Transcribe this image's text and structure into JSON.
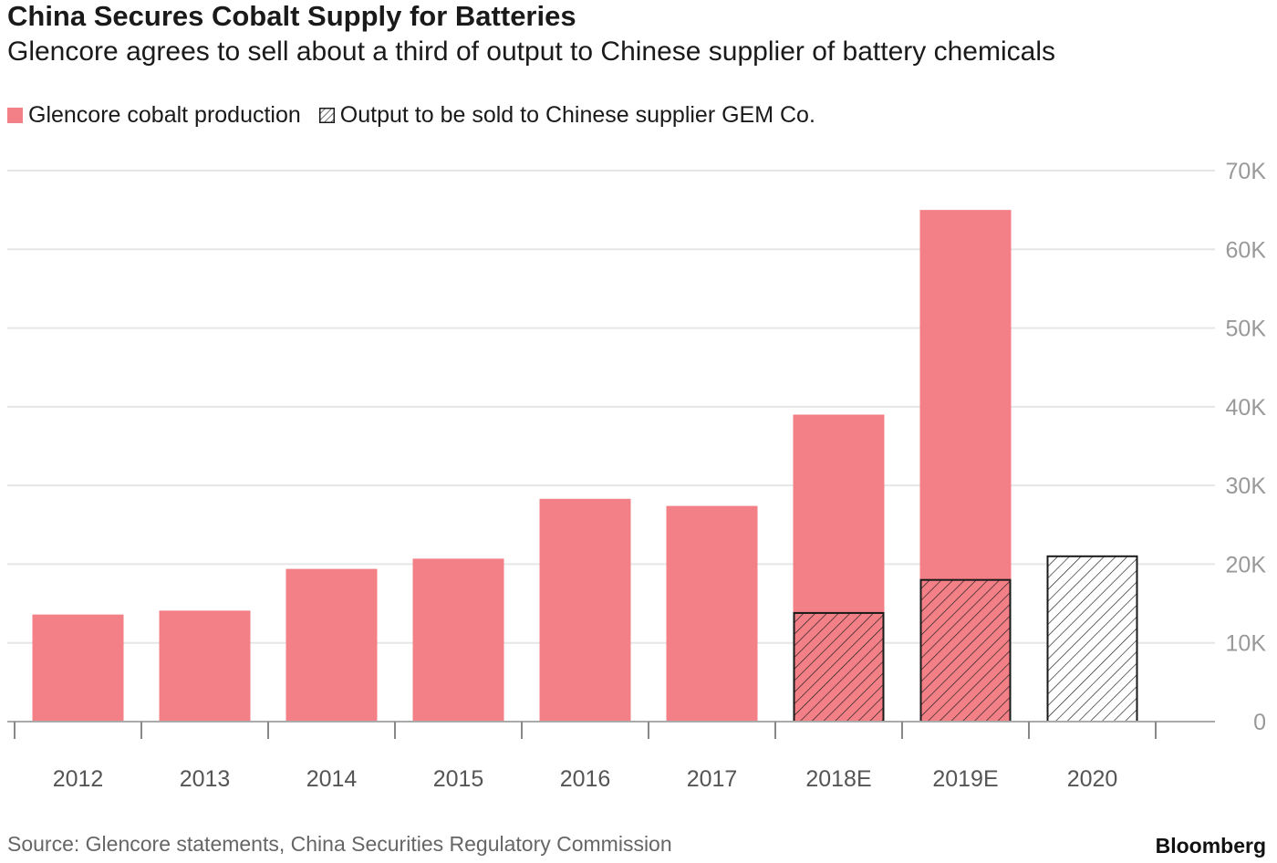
{
  "title": "China Secures Cobalt Supply for Batteries",
  "subtitle": "Glencore agrees to sell about a third of output to Chinese supplier of battery chemicals",
  "legend": {
    "production": "Glencore cobalt production",
    "gem": "Output to be sold to Chinese supplier GEM Co."
  },
  "source": "Source: Glencore statements, China Securities Regulatory Commission",
  "brand": "Bloomberg",
  "colors": {
    "production": "#f28086",
    "outline": "#1a1a1a",
    "grid": "#e6e6e6",
    "tick": "#888888"
  },
  "chart_data": {
    "type": "bar",
    "title": "China Secures Cobalt Supply for Batteries",
    "xlabel": "",
    "ylabel": "",
    "ylim": [
      0,
      70000
    ],
    "y_ticks": [
      0,
      10000,
      20000,
      30000,
      40000,
      50000,
      60000,
      70000
    ],
    "y_tick_labels": [
      "0",
      "10K",
      "20K",
      "30K",
      "40K",
      "50K",
      "60K",
      "70K"
    ],
    "y_axis_side": "right",
    "grid": true,
    "legend_position": "top-left",
    "categories": [
      "2012",
      "2013",
      "2014",
      "2015",
      "2016",
      "2017",
      "2018E",
      "2019E",
      "2020"
    ],
    "series": [
      {
        "name": "Glencore cobalt production",
        "values": [
          13600,
          14100,
          19400,
          20700,
          28300,
          27400,
          39000,
          65000,
          null
        ]
      },
      {
        "name": "Output to be sold to Chinese supplier GEM Co.",
        "values": [
          null,
          null,
          null,
          null,
          null,
          null,
          13800,
          18000,
          21000
        ]
      }
    ]
  }
}
